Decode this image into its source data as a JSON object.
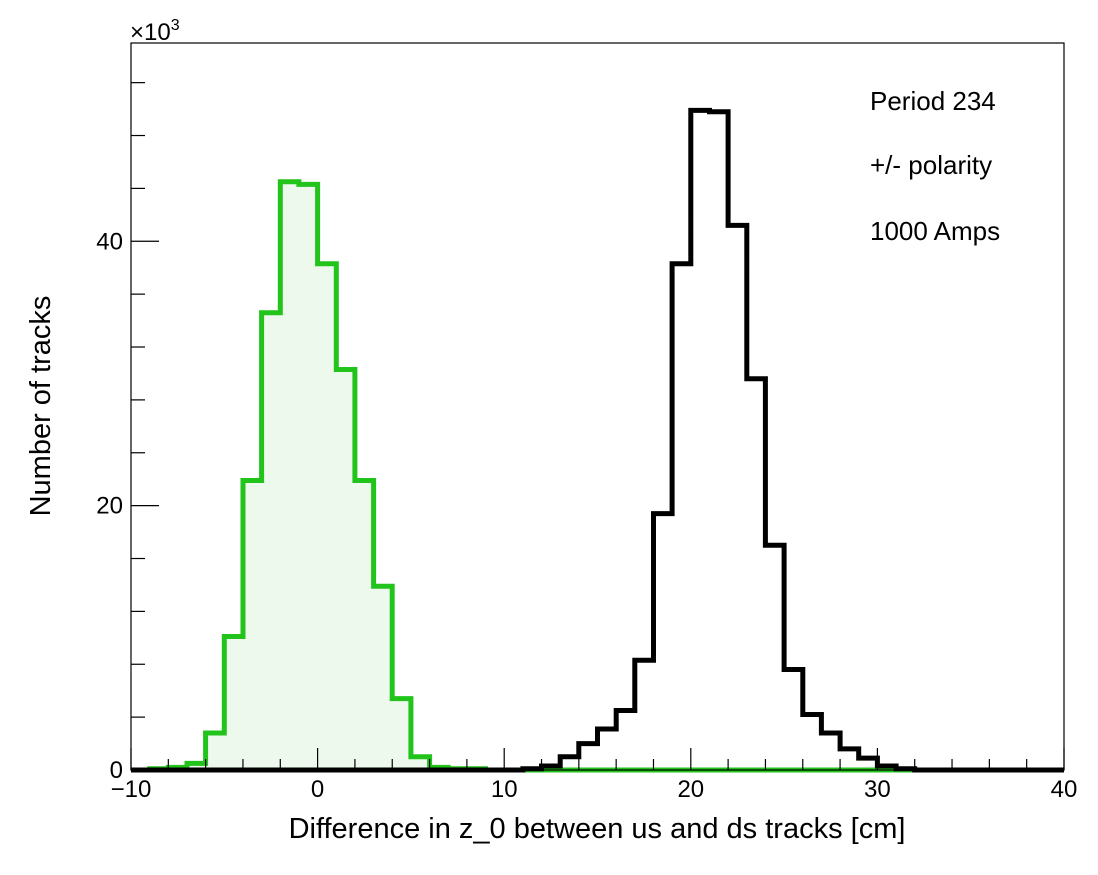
{
  "chart_data": {
    "type": "histogram",
    "xlabel": "Difference in z_0 between us and ds tracks [cm]",
    "ylabel": "Number of tracks",
    "y_multiplier_label": "×10",
    "y_multiplier_exp": "3",
    "xlim": [
      -10,
      40
    ],
    "ylim": [
      0,
      55
    ],
    "x_ticks": [
      -10,
      0,
      10,
      20,
      30,
      40
    ],
    "x_tick_labels": [
      "−10",
      "0",
      "10",
      "20",
      "30",
      "40"
    ],
    "y_ticks": [
      0,
      20,
      40
    ],
    "y_tick_labels": [
      "0",
      "20",
      "40"
    ],
    "grid": false,
    "legend": null,
    "annotations": [
      "Period 234",
      "+/- polarity",
      "1000 Amps"
    ],
    "bin_width": 1,
    "series": [
      {
        "color": "#22c31b",
        "fill": "#eef9ee",
        "bin_edges_start": -9,
        "values": [
          0.1,
          0.2,
          0.5,
          2.8,
          10.1,
          21.9,
          34.6,
          44.5,
          44.3,
          38.3,
          30.3,
          21.9,
          13.9,
          5.4,
          1.0,
          0.2,
          0.1,
          0.1
        ]
      },
      {
        "color": "#000000",
        "fill": "none",
        "bin_edges_start": 11,
        "values": [
          0.1,
          0.3,
          1.0,
          2.0,
          3.1,
          4.5,
          8.3,
          19.4,
          38.3,
          49.9,
          49.8,
          41.2,
          29.6,
          17.0,
          7.6,
          4.2,
          2.8,
          1.6,
          0.9,
          0.3,
          0.1
        ]
      }
    ]
  }
}
